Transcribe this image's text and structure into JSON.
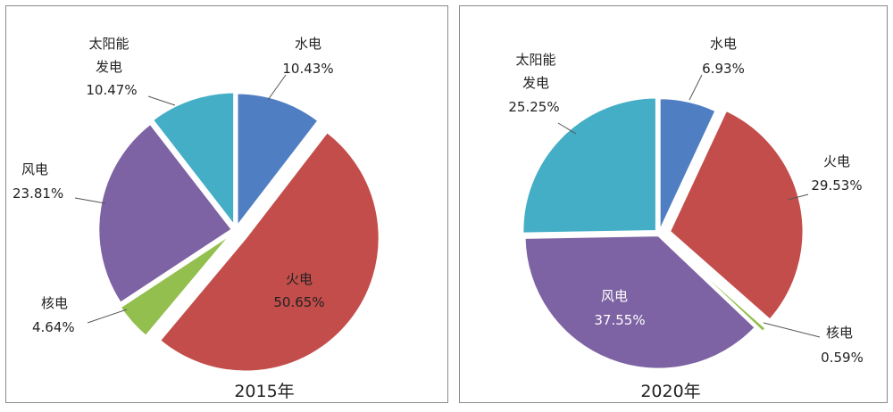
{
  "chart_data": [
    {
      "type": "pie",
      "title": "2015年",
      "slices": [
        {
          "name": "水电",
          "value": 10.43,
          "label": "10.43%",
          "color": "#4f7ec2"
        },
        {
          "name": "火电",
          "value": 50.65,
          "label": "50.65%",
          "color": "#c34d4a"
        },
        {
          "name": "核电",
          "value": 4.64,
          "label": "4.64%",
          "color": "#93bf4f"
        },
        {
          "name": "风电",
          "value": 23.81,
          "label": "23.81%",
          "color": "#7d63a3"
        },
        {
          "name": "太阳能发电",
          "label_lines": [
            "太阳能",
            "发电"
          ],
          "value": 10.47,
          "label": "10.47%",
          "color": "#44aec6"
        }
      ]
    },
    {
      "type": "pie",
      "title": "2020年",
      "slices": [
        {
          "name": "水电",
          "value": 6.93,
          "label": "6.93%",
          "color": "#4f7ec2"
        },
        {
          "name": "火电",
          "value": 29.53,
          "label": "29.53%",
          "color": "#c34d4a"
        },
        {
          "name": "核电",
          "value": 0.59,
          "label": "0.59%",
          "color": "#93bf4f"
        },
        {
          "name": "风电",
          "value": 37.55,
          "label": "37.55%",
          "color": "#7d63a3"
        },
        {
          "name": "太阳能发电",
          "label_lines": [
            "太阳能",
            "发电"
          ],
          "value": 25.25,
          "label": "25.25%",
          "color": "#44aec6"
        }
      ]
    }
  ]
}
